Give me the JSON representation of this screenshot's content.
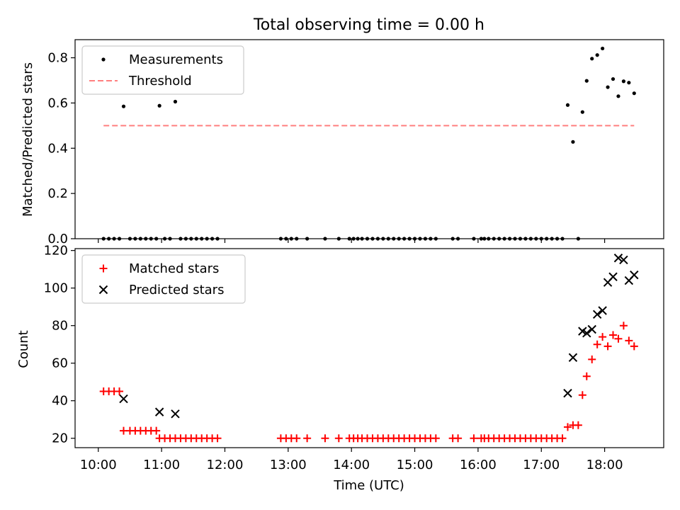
{
  "chart_data": [
    {
      "type": "scatter",
      "title": "Total observing time = 0.00 h",
      "xlabel": "",
      "ylabel": "Matched/Predicted stars",
      "ylim": [
        0,
        0.88
      ],
      "xlim": [
        "09:38",
        "18:56"
      ],
      "yticks": [
        0.0,
        0.2,
        0.4,
        0.6,
        0.8
      ],
      "ytick_labels": [
        "0.0",
        "0.2",
        "0.4",
        "0.6",
        "0.8"
      ],
      "grid": false,
      "legend": "upper-left",
      "series": [
        {
          "name": "Measurements",
          "marker": "dot",
          "color": "#000000",
          "points": [
            [
              "10:05",
              0.0
            ],
            [
              "10:10",
              0.0
            ],
            [
              "10:15",
              0.0
            ],
            [
              "10:20",
              0.0
            ],
            [
              "10:24",
              0.585
            ],
            [
              "10:30",
              0.0
            ],
            [
              "10:35",
              0.0
            ],
            [
              "10:40",
              0.0
            ],
            [
              "10:45",
              0.0
            ],
            [
              "10:50",
              0.0
            ],
            [
              "10:55",
              0.0
            ],
            [
              "10:58",
              0.588
            ],
            [
              "11:03",
              0.0
            ],
            [
              "11:08",
              0.0
            ],
            [
              "11:13",
              0.606
            ],
            [
              "11:18",
              0.0
            ],
            [
              "11:23",
              0.0
            ],
            [
              "11:28",
              0.0
            ],
            [
              "11:33",
              0.0
            ],
            [
              "11:38",
              0.0
            ],
            [
              "11:43",
              0.0
            ],
            [
              "11:48",
              0.0
            ],
            [
              "11:53",
              0.0
            ],
            [
              "12:53",
              0.0
            ],
            [
              "12:58",
              0.0
            ],
            [
              "13:03",
              0.0
            ],
            [
              "13:08",
              0.0
            ],
            [
              "13:18",
              0.0
            ],
            [
              "13:35",
              0.0
            ],
            [
              "13:48",
              0.0
            ],
            [
              "13:58",
              0.0
            ],
            [
              "14:02",
              0.0
            ],
            [
              "14:06",
              0.0
            ],
            [
              "14:10",
              0.0
            ],
            [
              "14:15",
              0.0
            ],
            [
              "14:20",
              0.0
            ],
            [
              "14:25",
              0.0
            ],
            [
              "14:30",
              0.0
            ],
            [
              "14:35",
              0.0
            ],
            [
              "14:40",
              0.0
            ],
            [
              "14:45",
              0.0
            ],
            [
              "14:50",
              0.0
            ],
            [
              "14:55",
              0.0
            ],
            [
              "15:00",
              0.0
            ],
            [
              "15:05",
              0.0
            ],
            [
              "15:10",
              0.0
            ],
            [
              "15:15",
              0.0
            ],
            [
              "15:20",
              0.0
            ],
            [
              "15:36",
              0.0
            ],
            [
              "15:41",
              0.0
            ],
            [
              "15:56",
              0.0
            ],
            [
              "16:03",
              0.0
            ],
            [
              "16:06",
              0.0
            ],
            [
              "16:10",
              0.0
            ],
            [
              "16:15",
              0.0
            ],
            [
              "16:20",
              0.0
            ],
            [
              "16:25",
              0.0
            ],
            [
              "16:30",
              0.0
            ],
            [
              "16:35",
              0.0
            ],
            [
              "16:40",
              0.0
            ],
            [
              "16:45",
              0.0
            ],
            [
              "16:50",
              0.0
            ],
            [
              "16:55",
              0.0
            ],
            [
              "17:00",
              0.0
            ],
            [
              "17:05",
              0.0
            ],
            [
              "17:10",
              0.0
            ],
            [
              "17:15",
              0.0
            ],
            [
              "17:20",
              0.0
            ],
            [
              "17:25",
              0.591
            ],
            [
              "17:30",
              0.428
            ],
            [
              "17:35",
              0.0
            ],
            [
              "17:39",
              0.56
            ],
            [
              "17:43",
              0.698
            ],
            [
              "17:48",
              0.796
            ],
            [
              "17:53",
              0.812
            ],
            [
              "17:58",
              0.841
            ],
            [
              "18:03",
              0.67
            ],
            [
              "18:08",
              0.706
            ],
            [
              "18:13",
              0.63
            ],
            [
              "18:18",
              0.696
            ],
            [
              "18:23",
              0.69
            ],
            [
              "18:28",
              0.643
            ]
          ]
        },
        {
          "name": "Threshold",
          "type": "line",
          "style": "dashed",
          "color": "#ff7f7f",
          "points": [
            [
              "10:05",
              0.5
            ],
            [
              "18:28",
              0.5
            ]
          ]
        }
      ]
    },
    {
      "type": "scatter",
      "title": "",
      "xlabel": "Time (UTC)",
      "ylabel": "Count",
      "ylim": [
        15,
        121
      ],
      "xlim": [
        "09:38",
        "18:56"
      ],
      "yticks": [
        20,
        40,
        60,
        80,
        100,
        120
      ],
      "ytick_labels": [
        "20",
        "40",
        "60",
        "80",
        "100",
        "120"
      ],
      "xticks": [
        "10:00",
        "11:00",
        "12:00",
        "13:00",
        "14:00",
        "15:00",
        "16:00",
        "17:00",
        "18:00"
      ],
      "xtick_labels": [
        "10:00",
        "11:00",
        "12:00",
        "13:00",
        "14:00",
        "15:00",
        "16:00",
        "17:00",
        "18:00"
      ],
      "grid": false,
      "legend": "upper-left",
      "series": [
        {
          "name": "Matched stars",
          "marker": "plus",
          "color": "#ff0000",
          "points": [
            [
              "10:05",
              45
            ],
            [
              "10:10",
              45
            ],
            [
              "10:15",
              45
            ],
            [
              "10:20",
              45
            ],
            [
              "10:24",
              24
            ],
            [
              "10:30",
              24
            ],
            [
              "10:35",
              24
            ],
            [
              "10:40",
              24
            ],
            [
              "10:45",
              24
            ],
            [
              "10:50",
              24
            ],
            [
              "10:55",
              24
            ],
            [
              "10:58",
              20
            ],
            [
              "11:03",
              20
            ],
            [
              "11:08",
              20
            ],
            [
              "11:13",
              20
            ],
            [
              "11:18",
              20
            ],
            [
              "11:23",
              20
            ],
            [
              "11:28",
              20
            ],
            [
              "11:33",
              20
            ],
            [
              "11:38",
              20
            ],
            [
              "11:43",
              20
            ],
            [
              "11:48",
              20
            ],
            [
              "11:53",
              20
            ],
            [
              "12:53",
              20
            ],
            [
              "12:58",
              20
            ],
            [
              "13:03",
              20
            ],
            [
              "13:08",
              20
            ],
            [
              "13:18",
              20
            ],
            [
              "13:35",
              20
            ],
            [
              "13:48",
              20
            ],
            [
              "13:58",
              20
            ],
            [
              "14:02",
              20
            ],
            [
              "14:06",
              20
            ],
            [
              "14:10",
              20
            ],
            [
              "14:15",
              20
            ],
            [
              "14:20",
              20
            ],
            [
              "14:25",
              20
            ],
            [
              "14:30",
              20
            ],
            [
              "14:35",
              20
            ],
            [
              "14:40",
              20
            ],
            [
              "14:45",
              20
            ],
            [
              "14:50",
              20
            ],
            [
              "14:55",
              20
            ],
            [
              "15:00",
              20
            ],
            [
              "15:05",
              20
            ],
            [
              "15:10",
              20
            ],
            [
              "15:15",
              20
            ],
            [
              "15:20",
              20
            ],
            [
              "15:36",
              20
            ],
            [
              "15:41",
              20
            ],
            [
              "15:56",
              20
            ],
            [
              "16:03",
              20
            ],
            [
              "16:06",
              20
            ],
            [
              "16:10",
              20
            ],
            [
              "16:15",
              20
            ],
            [
              "16:20",
              20
            ],
            [
              "16:25",
              20
            ],
            [
              "16:30",
              20
            ],
            [
              "16:35",
              20
            ],
            [
              "16:40",
              20
            ],
            [
              "16:45",
              20
            ],
            [
              "16:50",
              20
            ],
            [
              "16:55",
              20
            ],
            [
              "17:00",
              20
            ],
            [
              "17:05",
              20
            ],
            [
              "17:10",
              20
            ],
            [
              "17:15",
              20
            ],
            [
              "17:20",
              20
            ],
            [
              "17:25",
              26
            ],
            [
              "17:30",
              27
            ],
            [
              "17:35",
              27
            ],
            [
              "17:39",
              43
            ],
            [
              "17:43",
              53
            ],
            [
              "17:48",
              62
            ],
            [
              "17:53",
              70
            ],
            [
              "17:58",
              74
            ],
            [
              "18:03",
              69
            ],
            [
              "18:08",
              75
            ],
            [
              "18:13",
              73
            ],
            [
              "18:18",
              80
            ],
            [
              "18:23",
              72
            ],
            [
              "18:28",
              69
            ]
          ]
        },
        {
          "name": "Predicted stars",
          "marker": "x",
          "color": "#000000",
          "points": [
            [
              "10:24",
              41
            ],
            [
              "10:58",
              34
            ],
            [
              "11:13",
              33
            ],
            [
              "17:25",
              44
            ],
            [
              "17:30",
              63
            ],
            [
              "17:39",
              77
            ],
            [
              "17:43",
              76
            ],
            [
              "17:48",
              78
            ],
            [
              "17:53",
              86
            ],
            [
              "17:58",
              88
            ],
            [
              "18:03",
              103
            ],
            [
              "18:08",
              106
            ],
            [
              "18:13",
              116
            ],
            [
              "18:18",
              115
            ],
            [
              "18:23",
              104
            ],
            [
              "18:28",
              107
            ]
          ]
        }
      ]
    }
  ]
}
